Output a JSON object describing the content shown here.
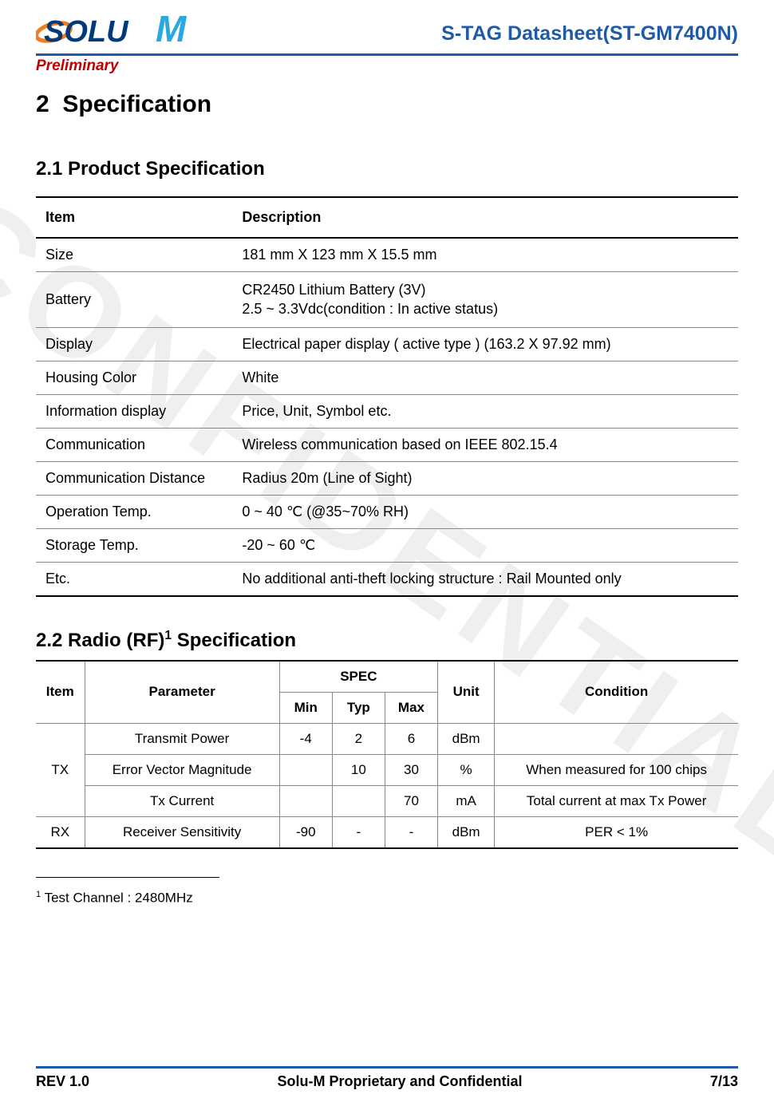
{
  "header": {
    "logo_solu": "SOLU",
    "logo_m": "M",
    "logo_swoosh_color": "#f47c20",
    "logo_text_color": "#003a7a",
    "logo_m_color": "#2aa9e0",
    "doc_title": "S-TAG Datasheet(ST-GM7400N)",
    "preliminary": "Preliminary"
  },
  "watermark": "CONFIDENTIAL",
  "section": {
    "number": "2",
    "title": "Specification",
    "sub1": {
      "number": "2.1",
      "title": "Product Specification"
    },
    "sub2": {
      "number": "2.2",
      "title_prefix": "Radio (RF)",
      "title_suffix": " Specification",
      "footnote_ref": "1"
    }
  },
  "spec_table": {
    "headers": {
      "item": "Item",
      "description": "Description"
    },
    "rows": [
      {
        "item": "Size",
        "desc": "181 mm X 123 mm X 15.5 mm"
      },
      {
        "item": "Battery",
        "desc": "CR2450 Lithium Battery (3V)\n2.5 ~ 3.3Vdc(condition : In active status)"
      },
      {
        "item": "Display",
        "desc": "Electrical paper display ( active type ) (163.2 X 97.92 mm)"
      },
      {
        "item": "Housing Color",
        "desc": "White"
      },
      {
        "item": "Information display",
        "desc": "Price, Unit, Symbol etc."
      },
      {
        "item": "Communication",
        "desc": "Wireless communication based on IEEE 802.15.4"
      },
      {
        "item": "Communication Distance",
        "desc": "Radius 20m (Line of Sight)"
      },
      {
        "item": "Operation Temp.",
        "desc": "0 ~ 40 ℃ (@35~70% RH)"
      },
      {
        "item": "Storage Temp.",
        "desc": "-20 ~ 60 ℃"
      },
      {
        "item": "Etc.",
        "desc": "No additional anti-theft locking structure : Rail Mounted only"
      }
    ]
  },
  "rf_table": {
    "headers": {
      "item": "Item",
      "parameter": "Parameter",
      "spec": "SPEC",
      "min": "Min",
      "typ": "Typ",
      "max": "Max",
      "unit": "Unit",
      "condition": "Condition"
    },
    "groups": [
      {
        "item": "TX",
        "rows": [
          {
            "param": "Transmit Power",
            "min": "-4",
            "typ": "2",
            "max": "6",
            "unit": "dBm",
            "cond": ""
          },
          {
            "param": "Error Vector Magnitude",
            "min": "",
            "typ": "10",
            "max": "30",
            "unit": "%",
            "cond": "When measured for 100 chips"
          },
          {
            "param": "Tx Current",
            "min": "",
            "typ": "",
            "max": "70",
            "unit": "mA",
            "cond": "Total current at max Tx Power"
          }
        ]
      },
      {
        "item": "RX",
        "rows": [
          {
            "param": "Receiver Sensitivity",
            "min": "-90",
            "typ": "-",
            "max": "-",
            "unit": "dBm",
            "cond": "PER < 1%"
          }
        ]
      }
    ]
  },
  "footnote": {
    "ref": "1",
    "text": " Test Channel : 2480MHz"
  },
  "footer": {
    "rev": "REV 1.0",
    "center": "Solu-M Proprietary and Confidential",
    "page": "7/13"
  }
}
